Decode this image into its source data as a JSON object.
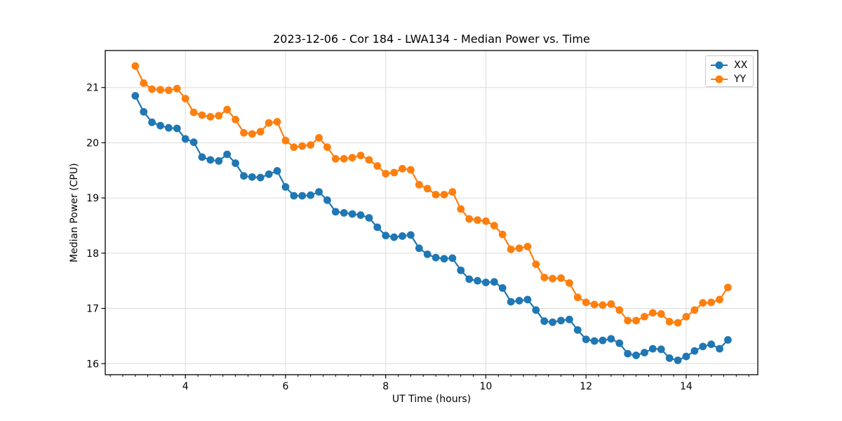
{
  "chart_data": {
    "type": "line",
    "title": "2023-12-06 - Cor 184 - LWA134 - Median Power vs. Time",
    "xlabel": "UT Time (hours)",
    "ylabel": "Median Power (CPU)",
    "xlim": [
      2.4,
      15.43
    ],
    "ylim": [
      15.8,
      21.67
    ],
    "x_major_ticks": [
      4,
      6,
      8,
      10,
      12,
      14
    ],
    "x_minor_step": 0.25,
    "y_major_ticks": [
      16,
      17,
      18,
      19,
      20,
      21
    ],
    "grid": true,
    "grid_color": "#dcdcdc",
    "spine_color": "#000000",
    "legend": {
      "position": "upper right",
      "entries": [
        "XX",
        "YY"
      ]
    },
    "x": [
      3.0,
      3.167,
      3.333,
      3.5,
      3.667,
      3.833,
      4.0,
      4.167,
      4.333,
      4.5,
      4.667,
      4.833,
      5.0,
      5.167,
      5.333,
      5.5,
      5.667,
      5.833,
      6.0,
      6.167,
      6.333,
      6.5,
      6.667,
      6.833,
      7.0,
      7.167,
      7.333,
      7.5,
      7.667,
      7.833,
      8.0,
      8.167,
      8.333,
      8.5,
      8.667,
      8.833,
      9.0,
      9.167,
      9.333,
      9.5,
      9.667,
      9.833,
      10.0,
      10.167,
      10.333,
      10.5,
      10.667,
      10.833,
      11.0,
      11.167,
      11.333,
      11.5,
      11.667,
      11.833,
      12.0,
      12.167,
      12.333,
      12.5,
      12.667,
      12.833,
      13.0,
      13.167,
      13.333,
      13.5,
      13.667,
      13.833,
      14.0,
      14.167,
      14.333,
      14.5,
      14.667,
      14.833
    ],
    "series": [
      {
        "name": "XX",
        "color": "#1f77b4",
        "values": [
          20.85,
          20.56,
          20.37,
          20.31,
          20.27,
          20.26,
          20.07,
          20.01,
          19.74,
          19.69,
          19.67,
          19.79,
          19.63,
          19.4,
          19.38,
          19.37,
          19.43,
          19.49,
          19.2,
          19.04,
          19.04,
          19.05,
          19.11,
          18.96,
          18.75,
          18.73,
          18.71,
          18.69,
          18.64,
          18.47,
          18.32,
          18.29,
          18.31,
          18.33,
          18.09,
          17.98,
          17.92,
          17.9,
          17.91,
          17.69,
          17.53,
          17.5,
          17.47,
          17.48,
          17.37,
          17.12,
          17.14,
          17.16,
          16.97,
          16.77,
          16.75,
          16.78,
          16.8,
          16.61,
          16.44,
          16.41,
          16.42,
          16.45,
          16.37,
          16.18,
          16.15,
          16.2,
          16.27,
          16.26,
          16.1,
          16.06,
          16.13,
          16.23,
          16.31,
          16.35,
          16.27,
          16.43
        ]
      },
      {
        "name": "YY",
        "color": "#ff7f0e",
        "values": [
          21.39,
          21.08,
          20.97,
          20.96,
          20.95,
          20.98,
          20.8,
          20.55,
          20.5,
          20.47,
          20.49,
          20.6,
          20.42,
          20.18,
          20.16,
          20.2,
          20.36,
          20.38,
          20.04,
          19.92,
          19.94,
          19.96,
          20.09,
          19.92,
          19.71,
          19.71,
          19.73,
          19.77,
          19.69,
          19.58,
          19.44,
          19.46,
          19.53,
          19.51,
          19.24,
          19.17,
          19.06,
          19.06,
          19.11,
          18.8,
          18.62,
          18.6,
          18.58,
          18.5,
          18.34,
          18.07,
          18.09,
          18.12,
          17.8,
          17.56,
          17.54,
          17.55,
          17.46,
          17.2,
          17.11,
          17.07,
          17.06,
          17.08,
          16.97,
          16.78,
          16.78,
          16.85,
          16.92,
          16.9,
          16.76,
          16.74,
          16.85,
          16.97,
          17.1,
          17.11,
          17.16,
          17.38
        ]
      }
    ]
  }
}
